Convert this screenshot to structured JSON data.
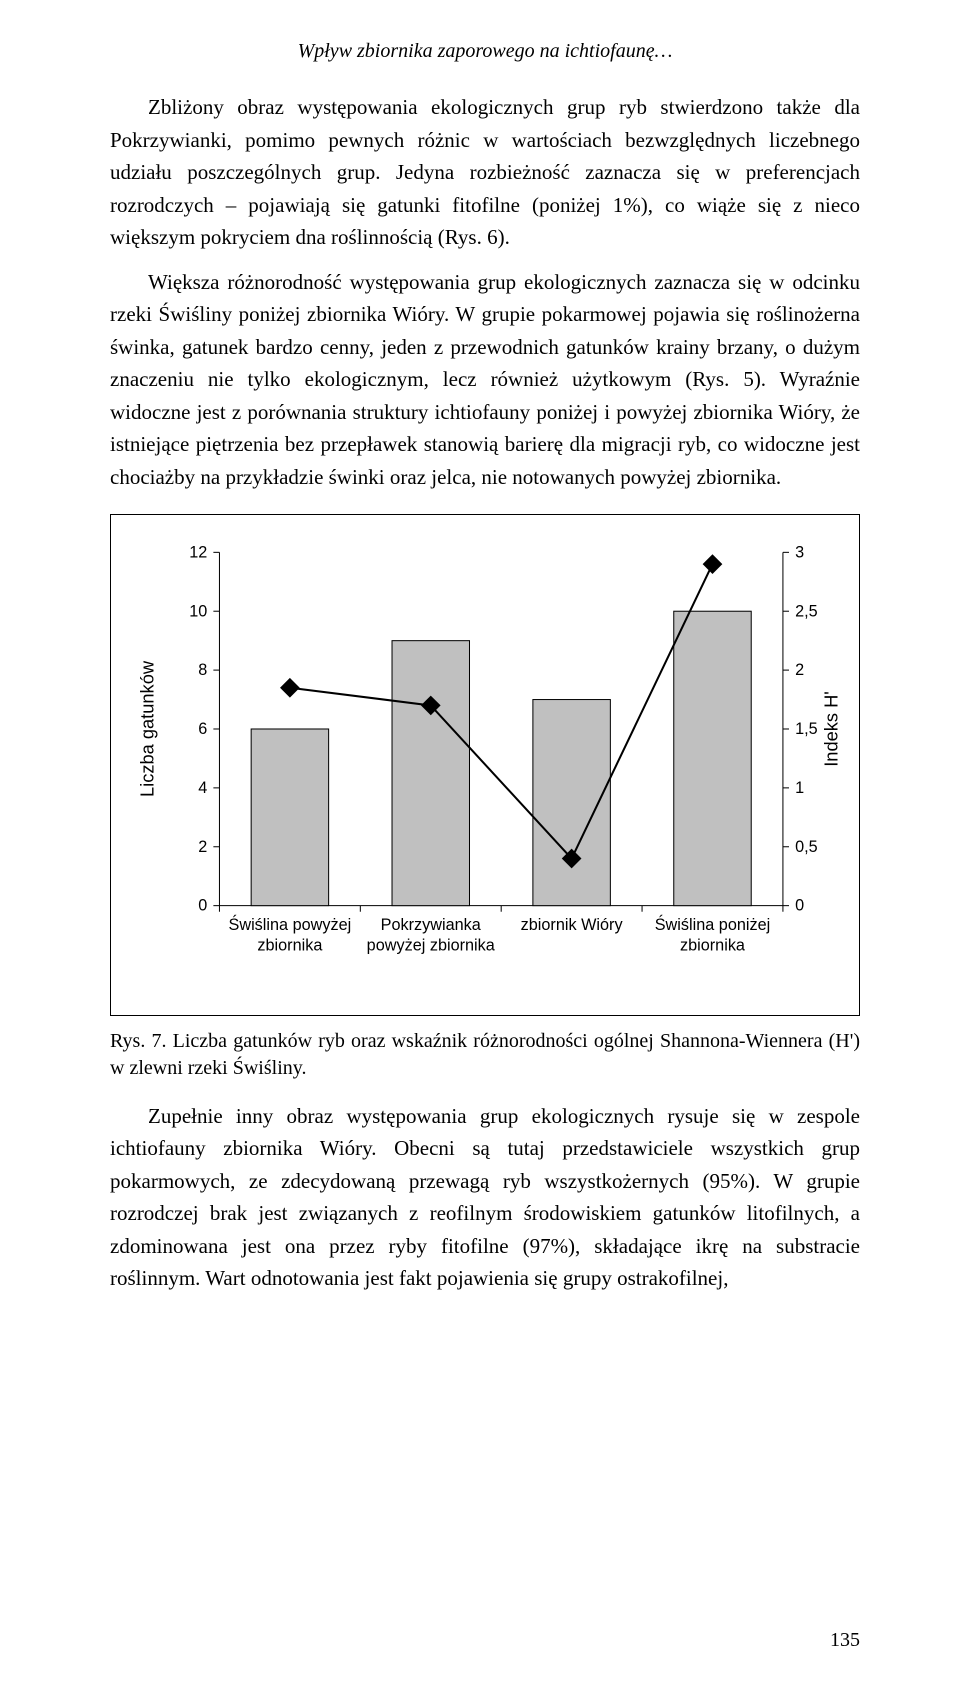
{
  "page": {
    "running_head": "Wpływ zbiornika zaporowego na ichtiofaunę…",
    "page_number": "135"
  },
  "paragraphs": {
    "p1": "Zbliżony obraz występowania ekologicznych grup ryb stwierdzono także dla Pokrzywianki, pomimo pewnych różnic w wartościach bezwzględnych liczebnego udziału poszczególnych grup. Jedyna rozbieżność zaznacza się w preferencjach rozrodczych – pojawiają się gatunki fitofilne (poniżej 1%), co wiąże się z nieco większym pokryciem dna roślinnością (Rys. 6).",
    "p2": "Większa różnorodność występowania grup ekologicznych zaznacza się w odcinku rzeki Świśliny poniżej zbiornika Wióry. W grupie pokarmowej pojawia się roślinożerna świnka, gatunek bardzo cenny, jeden z przewodnich gatunków krainy brzany, o dużym znaczeniu nie tylko ekologicznym, lecz również użytkowym (Rys. 5). Wyraźnie widoczne jest z porównania struktury ichtiofauny poniżej i powyżej zbiornika Wióry, że istniejące piętrzenia bez przepławek stanowią barierę dla migracji ryb, co widoczne jest chociażby na przykładzie świnki oraz jelca, nie notowanych powyżej zbiornika.",
    "p3": "Zupełnie inny obraz występowania grup ekologicznych rysuje się w zespole ichtiofauny zbiornika Wióry. Obecni są tutaj przedstawiciele wszystkich grup pokarmowych, ze zdecydowaną przewagą ryb wszystkożernych (95%). W grupie rozrodczej brak jest związanych z reofilnym środowiskiem gatunków litofilnych, a zdominowana jest ona przez ryby fitofilne (97%), składające ikrę na substracie roślinnym. Wart odnotowania jest fakt pojawienia się grupy ostrakofilnej,"
  },
  "figure7": {
    "caption": "Rys. 7. Liczba gatunków ryb oraz wskaźnik różnorodności ogólnej Shannona-Wiennera (H') w zlewni rzeki Świśliny.",
    "chart": {
      "type": "bar+line",
      "categories_line1": [
        "Świślina powyżej",
        "Pokrzywianka",
        "zbiornik Wióry",
        "Świślina poniżej"
      ],
      "categories_line2": [
        "zbiornika",
        "powyżej zbiornika",
        "",
        "zbiornika"
      ],
      "bar_values": [
        6,
        9,
        7,
        10
      ],
      "line_values": [
        1.85,
        1.7,
        0.4,
        2.9
      ],
      "y1_label": "Liczba gatunków",
      "y2_label": "Indeks H'",
      "y1_lim": [
        0,
        12
      ],
      "y1_tick_step": 2,
      "y2_lim": [
        0,
        3
      ],
      "y2_tick_step": 0.5,
      "y2_tick_labels": [
        "0",
        "0,5",
        "1",
        "1,5",
        "2",
        "2,5",
        "3"
      ],
      "bar_color": "#c0c0c0",
      "bar_border_color": "#000000",
      "line_color": "#000000",
      "marker_shape": "diamond",
      "marker_color": "#000000",
      "marker_size": 18,
      "line_width": 2,
      "background_color": "#ffffff",
      "axis_color": "#000000",
      "tick_font_size": 16,
      "axis_label_font_size": 18,
      "bar_width_ratio": 0.55
    }
  }
}
